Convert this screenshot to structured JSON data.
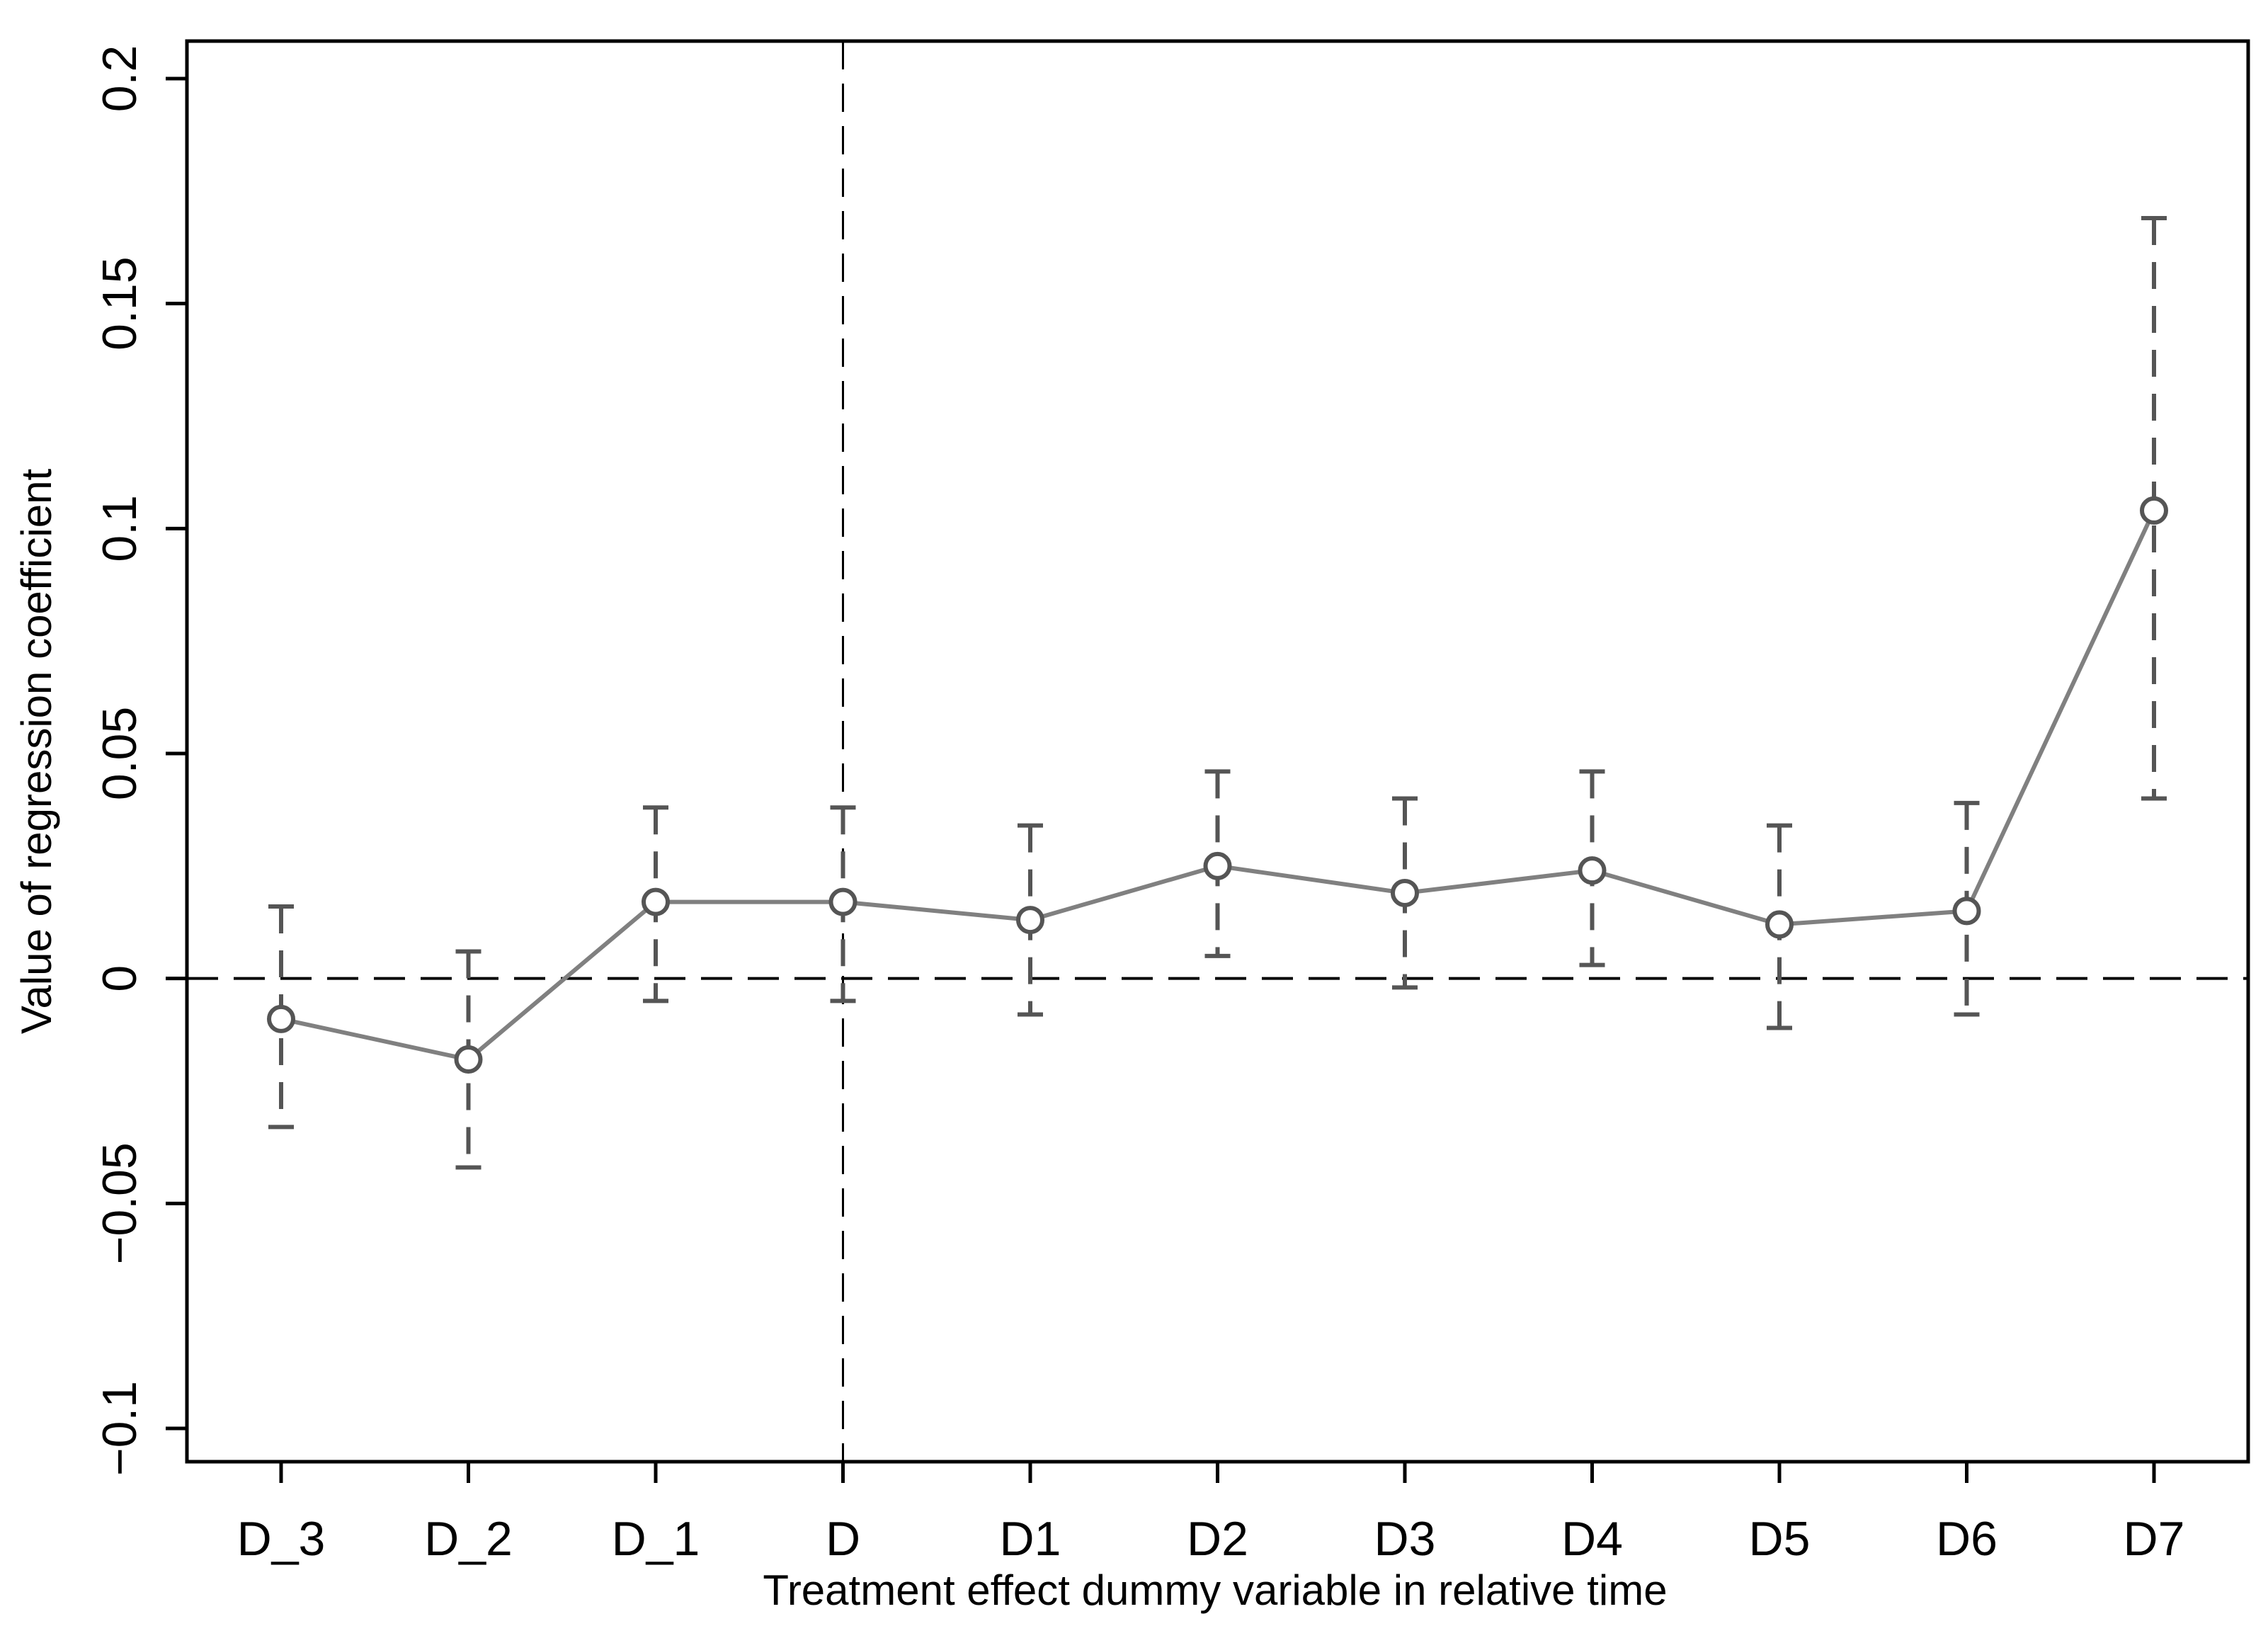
{
  "chart_data": {
    "type": "line",
    "title": "",
    "xlabel": "Treatment effect dummy variable in relative time",
    "ylabel": "Value of regression coefficient",
    "categories": [
      "D_3",
      "D_2",
      "D_1",
      "D",
      "D1",
      "D2",
      "D3",
      "D4",
      "D5",
      "D6",
      "D7"
    ],
    "series": [
      {
        "values": [
          -0.009,
          -0.018,
          0.017,
          0.017,
          0.013,
          0.025,
          0.019,
          0.024,
          0.012,
          0.015,
          0.104
        ],
        "ci_lower": [
          -0.033,
          -0.042,
          -0.005,
          -0.005,
          -0.008,
          0.005,
          -0.002,
          0.003,
          -0.011,
          -0.008,
          0.04
        ],
        "ci_upper": [
          0.016,
          0.006,
          0.038,
          0.038,
          0.034,
          0.046,
          0.04,
          0.046,
          0.034,
          0.039,
          0.169
        ]
      }
    ],
    "yticks": [
      -0.1,
      -0.05,
      0,
      0.05,
      0.1,
      0.15,
      0.2
    ],
    "ytick_labels": [
      "−0.1",
      "−0.05",
      "0",
      "0.05",
      "0.1",
      "0.15",
      "0.2"
    ],
    "ylim": [
      -0.108,
      0.208
    ],
    "reference_lines": {
      "horizontal_at_y": 0,
      "vertical_at_category": "D"
    },
    "grid": false,
    "legend": "none",
    "colors": {
      "series_line": "#808080",
      "error_bar": "#555555",
      "reference_line": "#000000",
      "axis": "#000000"
    }
  }
}
